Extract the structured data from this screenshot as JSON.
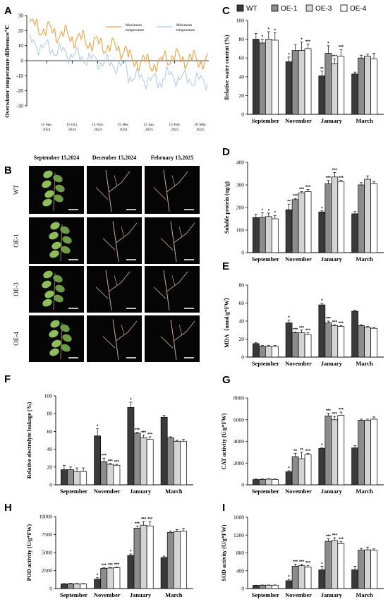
{
  "colors": {
    "WT": "#3a3a3a",
    "OE1": "#8c8c8c",
    "OE3": "#d4d4d4",
    "OE4": "#ffffff",
    "max": "#f0a040",
    "min": "#a9c9e6"
  },
  "legend": [
    "WT",
    "OE-1",
    "OE-3",
    "OE-4"
  ],
  "categories": [
    "September",
    "November",
    "January",
    "March"
  ],
  "panelA": {
    "letter": "A",
    "ylabel": "Overwinter temperature difference/℃",
    "yticks": [
      "30",
      "20",
      "10",
      "0",
      "-10",
      "-20",
      "-30"
    ],
    "xticks": [
      "15 Sep.\n2024",
      "15 Oct.\n2024",
      "15 Nov.\n2024",
      "15 Dec.\n2024",
      "15 Jan.\n2025",
      "15 Feb.\n2025",
      "10 Mar.\n2025"
    ],
    "legend_max": "Maximum\ntemperature",
    "legend_min": "Minimum\ntemperature"
  },
  "panelB": {
    "letter": "B",
    "cols": [
      "September 15,2024",
      "December 15,2024",
      "February 15,2025"
    ],
    "rows": [
      "WT",
      "OE-1",
      "OE-3",
      "OE-4"
    ]
  },
  "chart_data": [
    {
      "id": "C",
      "type": "bar",
      "ylabel": "Relative water content (%)",
      "ylim": [
        0,
        100
      ],
      "yticks": [
        0,
        20,
        40,
        60,
        80,
        100
      ],
      "categories": [
        "September",
        "November",
        "January",
        "March"
      ],
      "series": [
        {
          "name": "WT",
          "values": [
            80,
            56,
            41,
            43
          ],
          "err": [
            6,
            5,
            5,
            2
          ]
        },
        {
          "name": "OE-1",
          "values": [
            76,
            68,
            65,
            60
          ],
          "err": [
            4,
            6,
            8,
            3
          ]
        },
        {
          "name": "OE-3",
          "values": [
            80,
            68,
            54,
            62
          ],
          "err": [
            8,
            9,
            5,
            2
          ]
        },
        {
          "name": "OE-4",
          "values": [
            79,
            70,
            62,
            59
          ],
          "err": [
            8,
            5,
            7,
            6
          ]
        }
      ],
      "sig": [
        [
          "",
          "*",
          "**",
          ""
        ],
        [
          "*",
          "",
          "*",
          ""
        ],
        [
          "*",
          "*",
          "***",
          ""
        ],
        [
          "*",
          "***",
          "***",
          ""
        ]
      ]
    },
    {
      "id": "D",
      "type": "bar",
      "ylabel": "Soluble protein (ug/g)",
      "ylim": [
        0,
        400
      ],
      "yticks": [
        0,
        100,
        200,
        300,
        400
      ],
      "categories": [
        "September",
        "November",
        "January",
        "March"
      ],
      "series": [
        {
          "name": "WT",
          "values": [
            155,
            190,
            180,
            172
          ],
          "err": [
            15,
            25,
            5,
            10
          ]
        },
        {
          "name": "OE-1",
          "values": [
            156,
            235,
            305,
            300
          ],
          "err": [
            20,
            5,
            15,
            10
          ]
        },
        {
          "name": "OE-3",
          "values": [
            160,
            265,
            335,
            325
          ],
          "err": [
            15,
            5,
            20,
            15
          ]
        },
        {
          "name": "OE-4",
          "values": [
            150,
            270,
            315,
            305
          ],
          "err": [
            15,
            10,
            5,
            10
          ]
        }
      ],
      "sig": [
        [
          "",
          "**",
          "*",
          ""
        ],
        [
          "*",
          "***",
          "***",
          ""
        ],
        [
          "*",
          "***",
          "***",
          ""
        ],
        [
          "*",
          "***",
          "***",
          ""
        ]
      ]
    },
    {
      "id": "E",
      "type": "bar",
      "ylabel": "MDA（umol/g*FW）",
      "ylim": [
        0,
        80
      ],
      "yticks": [
        0,
        20,
        40,
        60,
        80
      ],
      "categories": [
        "September",
        "November",
        "January",
        "March"
      ],
      "series": [
        {
          "name": "WT",
          "values": [
            15,
            38,
            58,
            51
          ],
          "err": [
            1,
            3,
            2,
            1
          ]
        },
        {
          "name": "OE-1",
          "values": [
            12,
            27,
            38,
            35
          ],
          "err": [
            1,
            1,
            2,
            1
          ]
        },
        {
          "name": "OE-3",
          "values": [
            12,
            27,
            35,
            33
          ],
          "err": [
            1,
            3,
            1,
            1
          ]
        },
        {
          "name": "OE-4",
          "values": [
            12,
            25,
            34,
            32
          ],
          "err": [
            1,
            2,
            1,
            1
          ]
        }
      ],
      "sig": [
        [
          "",
          "*",
          "*",
          ""
        ],
        [
          "",
          "***",
          "***",
          ""
        ],
        [
          "",
          "***",
          "***",
          ""
        ],
        [
          "",
          "***",
          "***",
          ""
        ]
      ]
    },
    {
      "id": "F",
      "type": "bar",
      "ylabel": "Relative electrolyte leakage (%)",
      "ylim": [
        0,
        100
      ],
      "yticks": [
        0,
        20,
        40,
        60,
        80,
        100
      ],
      "categories": [
        "September",
        "November",
        "January",
        "March"
      ],
      "series": [
        {
          "name": "WT",
          "values": [
            17,
            55,
            87,
            76
          ],
          "err": [
            5,
            8,
            6,
            2
          ]
        },
        {
          "name": "OE-1",
          "values": [
            17,
            26,
            58,
            53
          ],
          "err": [
            3,
            4,
            1,
            1
          ]
        },
        {
          "name": "OE-3",
          "values": [
            15,
            23,
            53,
            49
          ],
          "err": [
            4,
            1,
            3,
            1
          ]
        },
        {
          "name": "OE-4",
          "values": [
            15,
            22,
            51,
            49
          ],
          "err": [
            4,
            1,
            3,
            2
          ]
        }
      ],
      "sig": [
        [
          "",
          "*",
          "*",
          ""
        ],
        [
          "",
          "***",
          "***",
          ""
        ],
        [
          "",
          "***",
          "***",
          ""
        ],
        [
          "",
          "***",
          "***",
          ""
        ]
      ]
    },
    {
      "id": "G",
      "type": "bar",
      "ylabel": "CAT activity (U/g*FW)",
      "ylim": [
        0,
        8000
      ],
      "yticks": [
        0,
        2000,
        4000,
        6000,
        8000
      ],
      "categories": [
        "September",
        "November",
        "January",
        "March"
      ],
      "series": [
        {
          "name": "WT",
          "values": [
            480,
            1200,
            3350,
            3400
          ],
          "err": [
            50,
            100,
            50,
            200
          ]
        },
        {
          "name": "OE-1",
          "values": [
            500,
            2600,
            6350,
            5950
          ],
          "err": [
            40,
            300,
            250,
            100
          ]
        },
        {
          "name": "OE-3",
          "values": [
            520,
            2400,
            6000,
            5950
          ],
          "err": [
            40,
            600,
            300,
            100
          ]
        },
        {
          "name": "OE-4",
          "values": [
            500,
            2800,
            6400,
            6050
          ],
          "err": [
            40,
            100,
            300,
            200
          ]
        }
      ],
      "sig": [
        [
          "",
          "*",
          "*",
          ""
        ],
        [
          "",
          "**",
          "***",
          ""
        ],
        [
          "",
          "**",
          "***",
          ""
        ],
        [
          "",
          "***",
          "***",
          ""
        ]
      ]
    },
    {
      "id": "H",
      "type": "bar",
      "ylabel": "POD activity (U/g*FW)",
      "ylim": [
        0,
        10000
      ],
      "yticks": [
        0,
        2500,
        5000,
        7500,
        10000
      ],
      "categories": [
        "September",
        "November",
        "January",
        "March"
      ],
      "series": [
        {
          "name": "WT",
          "values": [
            640,
            1300,
            4600,
            4300
          ],
          "err": [
            50,
            200,
            200,
            200
          ]
        },
        {
          "name": "OE-1",
          "values": [
            680,
            2800,
            8400,
            7800
          ],
          "err": [
            50,
            100,
            300,
            200
          ]
        },
        {
          "name": "OE-3",
          "values": [
            660,
            2850,
            8800,
            7900
          ],
          "err": [
            50,
            100,
            500,
            300
          ]
        },
        {
          "name": "OE-4",
          "values": [
            650,
            2900,
            8700,
            7950
          ],
          "err": [
            50,
            100,
            600,
            400
          ]
        }
      ],
      "sig": [
        [
          "",
          "*",
          "*",
          ""
        ],
        [
          "",
          "***",
          "***",
          ""
        ],
        [
          "",
          "***",
          "***",
          ""
        ],
        [
          "",
          "***",
          "***",
          ""
        ]
      ]
    },
    {
      "id": "I",
      "type": "bar",
      "ylabel": "SOD activity (U/g*FW)",
      "ylim": [
        0,
        1600
      ],
      "yticks": [
        0,
        400,
        800,
        1200,
        1600
      ],
      "categories": [
        "September",
        "November",
        "January",
        "March"
      ],
      "series": [
        {
          "name": "WT",
          "values": [
            70,
            175,
            420,
            420
          ],
          "err": [
            5,
            30,
            80,
            80
          ]
        },
        {
          "name": "OE-1",
          "values": [
            75,
            500,
            1060,
            860
          ],
          "err": [
            5,
            50,
            60,
            40
          ]
        },
        {
          "name": "OE-3",
          "values": [
            75,
            515,
            1080,
            870
          ],
          "err": [
            5,
            30,
            60,
            60
          ]
        },
        {
          "name": "OE-4",
          "values": [
            75,
            480,
            1010,
            860
          ],
          "err": [
            5,
            40,
            40,
            30
          ]
        }
      ],
      "sig": [
        [
          "",
          "*",
          "*",
          ""
        ],
        [
          "",
          "***",
          "***",
          ""
        ],
        [
          "",
          "***",
          "***",
          ""
        ],
        [
          "",
          "***",
          "***",
          ""
        ]
      ]
    }
  ]
}
